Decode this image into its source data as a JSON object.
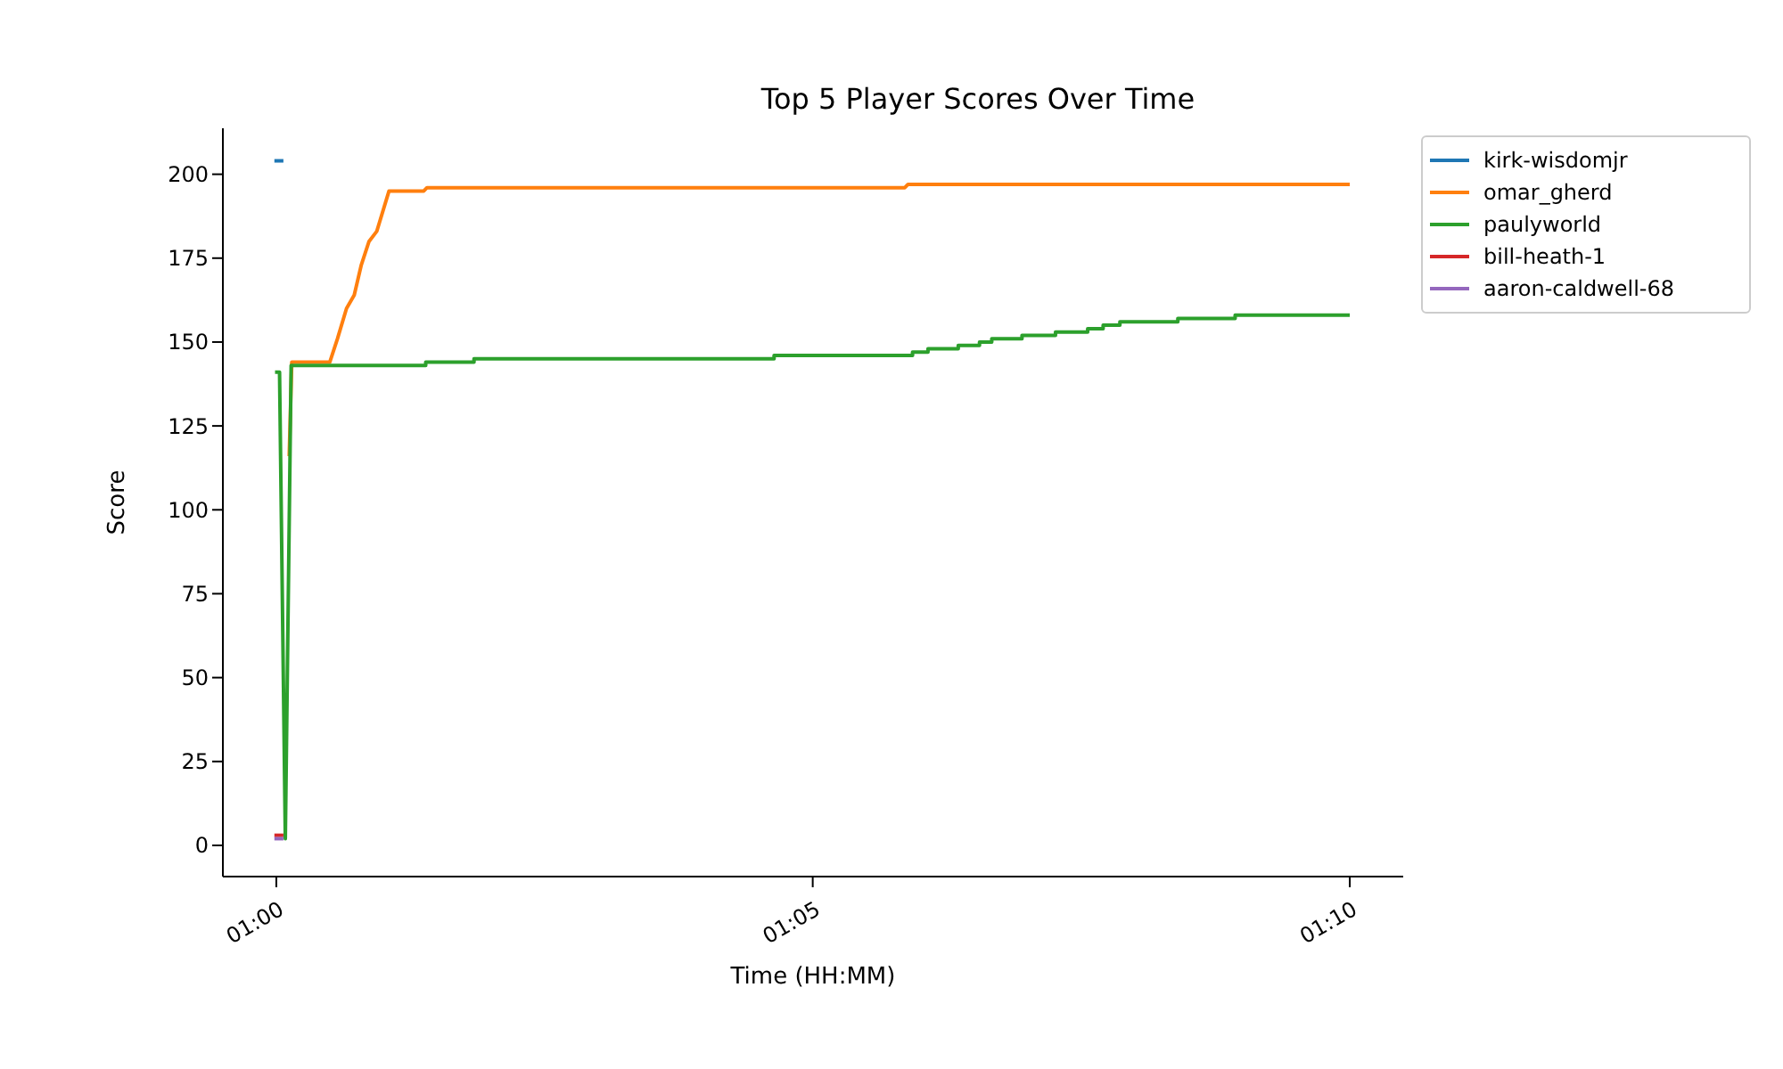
{
  "chart_data": {
    "type": "line",
    "title": "Top 5 Player Scores Over Time",
    "xlabel": "Time (HH:MM)",
    "ylabel": "Score",
    "xlim": [
      0.9917,
      1.175
    ],
    "xticks": [
      {
        "value": 1,
        "label": "01:00"
      },
      {
        "value": 1.0833,
        "label": "01:05"
      },
      {
        "value": 1.1667,
        "label": "01:10"
      }
    ],
    "ylim": [
      -9.3,
      213.7
    ],
    "yticks": [
      0,
      25,
      50,
      75,
      100,
      125,
      150,
      175,
      200
    ],
    "grid": false,
    "legend": "top right",
    "marker": "none",
    "line_style": "solid",
    "series": [
      {
        "name": "kirk-wisdomjr",
        "color": "#1f77b4",
        "x": [
          0.9997,
          1.0011
        ],
        "values": [
          204,
          204
        ]
      },
      {
        "name": "omar_gherd",
        "color": "#ff7f0e",
        "x": [
          1.002,
          1.0024,
          1.0083,
          1.0095,
          1.0109,
          1.0121,
          1.0132,
          1.0144,
          1.0156,
          1.0175,
          1.0229,
          1.0234,
          1.0976,
          1.0981,
          1.1667
        ],
        "values": [
          116,
          144,
          144,
          151,
          160,
          164,
          173,
          180,
          183,
          195,
          195,
          196,
          196,
          197,
          197
        ]
      },
      {
        "name": "paulyworld",
        "color": "#2ca02c",
        "x": [
          0.9998,
          1.0005,
          1.0014,
          1.0023,
          1.0232,
          1.0232,
          1.0307,
          1.0307,
          1.0773,
          1.0773,
          1.0988,
          1.0988,
          1.1012,
          1.1012,
          1.1059,
          1.1059,
          1.1092,
          1.1092,
          1.1111,
          1.1111,
          1.1158,
          1.1158,
          1.121,
          1.121,
          1.126,
          1.126,
          1.1284,
          1.1284,
          1.131,
          1.131,
          1.14,
          1.14,
          1.1489,
          1.1489,
          1.1667
        ],
        "values": [
          141,
          141,
          2,
          143,
          143,
          144,
          144,
          145,
          145,
          146,
          146,
          147,
          147,
          148,
          148,
          149,
          149,
          150,
          150,
          151,
          151,
          152,
          152,
          153,
          153,
          154,
          154,
          155,
          155,
          156,
          156,
          157,
          157,
          158,
          158
        ]
      },
      {
        "name": "bill-heath-1",
        "color": "#d62728",
        "x": [
          0.9997,
          1.0011
        ],
        "values": [
          3,
          3
        ]
      },
      {
        "name": "aaron-caldwell-68",
        "color": "#9467bd",
        "x": [
          0.9997,
          1.0011
        ],
        "values": [
          2,
          2
        ]
      }
    ]
  }
}
